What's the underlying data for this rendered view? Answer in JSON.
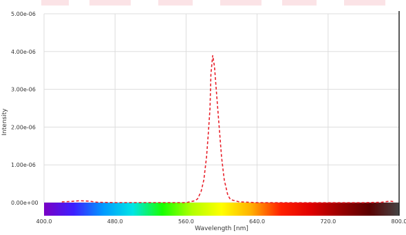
{
  "chart_data": {
    "type": "line",
    "xlabel": "Wavelength [nm]",
    "ylabel": "Intensity",
    "xlim": [
      400,
      800
    ],
    "ylim": [
      0,
      5e-06
    ],
    "x_ticks": [
      400,
      480,
      560,
      640,
      720,
      800
    ],
    "x_tick_labels": [
      "400.0",
      "480.0",
      "560.0",
      "640.0",
      "720.0",
      "800.0"
    ],
    "y_ticks": [
      0,
      1e-06,
      2e-06,
      3e-06,
      4e-06,
      5e-06
    ],
    "y_tick_labels": [
      "0.00e+00",
      "1.00e-06",
      "2.00e-06",
      "3.00e-06",
      "4.00e-06",
      "5.00e-06"
    ],
    "grid": true,
    "series": [
      {
        "line_style": "dashed",
        "color": "#e8202a",
        "x": [
          420,
          430,
          440,
          450,
          460,
          480,
          500,
          520,
          560,
          570,
          573,
          577,
          580,
          583,
          585,
          587,
          588,
          590,
          592,
          595,
          598,
          600,
          603,
          607,
          610,
          620,
          640,
          660,
          680,
          700,
          720,
          760,
          780,
          790,
          795
        ],
        "y": [
          2e-08,
          3e-08,
          5e-08,
          4e-08,
          1e-08,
          0.0,
          0.0,
          0.0,
          0.0,
          5e-08,
          1e-07,
          3e-07,
          6e-07,
          1.2e-06,
          1.8e-06,
          2.5e-06,
          3.4e-06,
          3.9e-06,
          3.6e-06,
          2.7e-06,
          1.8e-06,
          1.2e-06,
          6e-07,
          2e-07,
          8e-08,
          2e-08,
          0.0,
          0.0,
          0.0,
          0.0,
          0.0,
          0.0,
          1e-08,
          4e-08,
          2e-08
        ]
      }
    ]
  },
  "spectrum_colors": [
    "#7a00c4",
    "#3d1fff",
    "#0099ff",
    "#00e5e5",
    "#18ff00",
    "#b2ff00",
    "#ffff00",
    "#ffb000",
    "#ff2000",
    "#e00000",
    "#9a0000",
    "#5a0000",
    "#444444"
  ]
}
